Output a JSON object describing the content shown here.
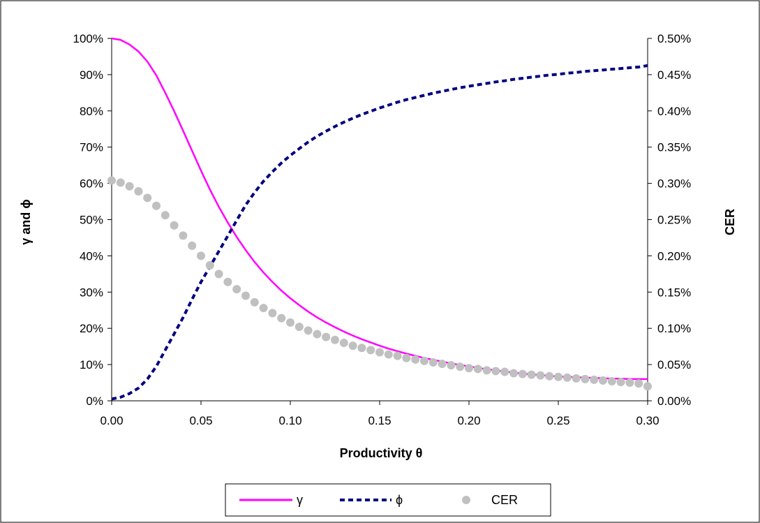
{
  "chart_data": {
    "type": "line",
    "xlabel": "Productivity θ",
    "ylabel_left": "γ and ϕ",
    "ylabel_right": "CER",
    "xlim": [
      0,
      0.3
    ],
    "ylim_left": [
      0,
      100
    ],
    "ylim_right": [
      0,
      0.5
    ],
    "x_ticks": [
      "0.00",
      "0.05",
      "0.10",
      "0.15",
      "0.20",
      "0.25",
      "0.30"
    ],
    "y_left_ticks": [
      "0%",
      "10%",
      "20%",
      "30%",
      "40%",
      "50%",
      "60%",
      "70%",
      "80%",
      "90%",
      "100%"
    ],
    "y_right_ticks": [
      "0.00%",
      "0.05%",
      "0.10%",
      "0.15%",
      "0.20%",
      "0.25%",
      "0.30%",
      "0.35%",
      "0.40%",
      "0.45%",
      "0.50%"
    ],
    "grid": false,
    "legend_position": "bottom",
    "x": [
      0.0,
      0.005,
      0.01,
      0.015,
      0.02,
      0.025,
      0.03,
      0.035,
      0.04,
      0.045,
      0.05,
      0.055,
      0.06,
      0.065,
      0.07,
      0.075,
      0.08,
      0.085,
      0.09,
      0.095,
      0.1,
      0.105,
      0.11,
      0.115,
      0.12,
      0.125,
      0.13,
      0.135,
      0.14,
      0.145,
      0.15,
      0.155,
      0.16,
      0.165,
      0.17,
      0.175,
      0.18,
      0.185,
      0.19,
      0.195,
      0.2,
      0.205,
      0.21,
      0.215,
      0.22,
      0.225,
      0.23,
      0.235,
      0.24,
      0.245,
      0.25,
      0.255,
      0.26,
      0.265,
      0.27,
      0.275,
      0.28,
      0.285,
      0.29,
      0.295,
      0.3
    ],
    "series": [
      {
        "name": "γ",
        "axis": "left",
        "color": "#FF00FF",
        "style": "solid",
        "values": [
          100,
          99.6,
          98.3,
          96.4,
          93.6,
          89.8,
          85.0,
          79.9,
          74.5,
          69.0,
          63.5,
          58.3,
          53.5,
          49.2,
          45.2,
          41.6,
          38.3,
          35.4,
          32.8,
          30.4,
          28.3,
          26.4,
          24.6,
          23.0,
          21.6,
          20.3,
          19.1,
          18.0,
          17.0,
          16.1,
          15.2,
          14.4,
          13.7,
          13.0,
          12.4,
          11.8,
          11.3,
          10.8,
          10.3,
          9.9,
          9.5,
          9.1,
          8.7,
          8.4,
          8.1,
          7.8,
          7.5,
          7.3,
          7.1,
          6.9,
          6.7,
          6.6,
          6.5,
          6.4,
          6.3,
          6.2,
          6.1,
          6.1,
          6.0,
          6.0,
          6.0
        ]
      },
      {
        "name": "ϕ",
        "axis": "left",
        "color": "#000080",
        "style": "dashed",
        "values": [
          0.5,
          1.0,
          2.0,
          3.5,
          6.0,
          9.5,
          14.0,
          18.5,
          23.0,
          28.0,
          32.8,
          37.0,
          41.3,
          45.5,
          49.8,
          54.0,
          57.5,
          60.6,
          63.2,
          65.6,
          67.7,
          69.6,
          71.4,
          73.0,
          74.4,
          75.7,
          76.9,
          78.0,
          79.0,
          79.9,
          80.8,
          81.6,
          82.4,
          83.1,
          83.7,
          84.3,
          84.9,
          85.4,
          85.9,
          86.4,
          86.8,
          87.2,
          87.6,
          88.0,
          88.3,
          88.7,
          89.0,
          89.3,
          89.6,
          89.9,
          90.1,
          90.4,
          90.6,
          90.9,
          91.1,
          91.3,
          91.5,
          91.7,
          91.9,
          92.1,
          92.5
        ]
      },
      {
        "name": "CER",
        "axis": "right",
        "color": "#C0C0C0",
        "style": "markers",
        "values": [
          0.304,
          0.301,
          0.296,
          0.289,
          0.28,
          0.269,
          0.256,
          0.242,
          0.228,
          0.214,
          0.2,
          0.187,
          0.175,
          0.164,
          0.154,
          0.145,
          0.136,
          0.128,
          0.121,
          0.114,
          0.108,
          0.102,
          0.097,
          0.092,
          0.088,
          0.084,
          0.08,
          0.076,
          0.073,
          0.07,
          0.067,
          0.064,
          0.062,
          0.059,
          0.057,
          0.055,
          0.053,
          0.051,
          0.049,
          0.047,
          0.045,
          0.044,
          0.042,
          0.041,
          0.04,
          0.038,
          0.037,
          0.036,
          0.035,
          0.034,
          0.033,
          0.032,
          0.031,
          0.03,
          0.029,
          0.028,
          0.027,
          0.026,
          0.025,
          0.024,
          0.02
        ]
      }
    ]
  }
}
